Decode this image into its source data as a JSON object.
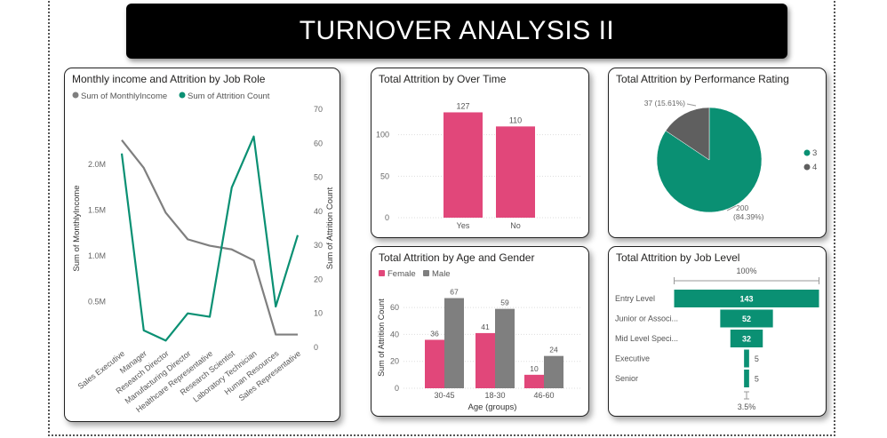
{
  "page": {
    "title": "TURNOVER ANALYSIS II"
  },
  "colors": {
    "teal": "#0a9073",
    "gray": "#7f7f7f",
    "pink": "#e1477a",
    "axis": "#666666",
    "grid": "#dddddd"
  },
  "cards": {
    "job_role": {
      "title": "Monthly income and Attrition by Job Role"
    },
    "overtime": {
      "title": "Total Attrition by Over Time"
    },
    "performance": {
      "title": "Total Attrition by Performance Rating"
    },
    "age_gender": {
      "title": "Total Attrition by Age and Gender"
    },
    "job_level": {
      "title": "Total Attrition by Job Level"
    }
  },
  "chart_data": [
    {
      "id": "job_role",
      "type": "line",
      "title": "Monthly income and Attrition by Job Role",
      "categories": [
        "Sales Executive",
        "Manager",
        "Research Director",
        "Manufacturing Director",
        "Healthcare Representative",
        "Research Scientist",
        "Laboratory Technician",
        "Human Resources",
        "Sales Representative"
      ],
      "series": [
        {
          "name": "Sum of MonthlyIncome",
          "axis": "left",
          "color": "#7f7f7f",
          "values": [
            2263000,
            1960000,
            1470000,
            1180000,
            1110000,
            1070000,
            950000,
            140000,
            140000
          ]
        },
        {
          "name": "Sum of Attrition Count",
          "axis": "right",
          "color": "#0a9073",
          "values": [
            57,
            5,
            2,
            10,
            9,
            47,
            62,
            12,
            33
          ]
        }
      ],
      "ylabel_left": "Sum of MonthlyIncome",
      "ylabel_right": "Sum of Attrition Count",
      "left_ticks": [
        "0.5M",
        "1.0M",
        "1.5M",
        "2.0M"
      ],
      "left_tick_values": [
        500000,
        1000000,
        1500000,
        2000000
      ],
      "ylim_left": [
        0,
        2600000
      ],
      "right_ticks": [
        0,
        10,
        20,
        30,
        40,
        50,
        60,
        70
      ],
      "ylim_right": [
        0,
        70
      ],
      "legend": "top-left"
    },
    {
      "id": "overtime",
      "type": "bar",
      "title": "Total Attrition by Over Time",
      "categories": [
        "Yes",
        "No"
      ],
      "values": [
        127,
        110
      ],
      "color": "#e1477a",
      "y_ticks": [
        0,
        50,
        100
      ],
      "ylim": [
        0,
        135
      ]
    },
    {
      "id": "performance",
      "type": "pie",
      "title": "Total Attrition by Performance Rating",
      "slices": [
        {
          "label": "3",
          "value": 200,
          "pct": "84.39%",
          "data_label": "200 (84.39%)",
          "color": "#0a9073"
        },
        {
          "label": "4",
          "value": 37,
          "pct": "15.61%",
          "data_label": "37 (15.61%)",
          "color": "#5f5f5f"
        }
      ],
      "legend": "right"
    },
    {
      "id": "age_gender",
      "type": "bar",
      "title": "Total Attrition by Age and Gender",
      "categories": [
        "30-45",
        "18-30",
        "46-60"
      ],
      "series": [
        {
          "name": "Female",
          "color": "#e1477a",
          "values": [
            36,
            41,
            10
          ]
        },
        {
          "name": "Male",
          "color": "#7f7f7f",
          "values": [
            67,
            59,
            24
          ]
        }
      ],
      "xlabel": "Age (groups)",
      "ylabel": "Sum of Attrition Count",
      "y_ticks": [
        0,
        20,
        40,
        60
      ],
      "ylim": [
        0,
        70
      ],
      "legend": "top-left"
    },
    {
      "id": "job_level",
      "type": "funnel",
      "title": "Total Attrition by Job Level",
      "categories": [
        "Entry Level",
        "Junior or Associ...",
        "Mid Level Speci...",
        "Executive",
        "Senior"
      ],
      "values": [
        143,
        52,
        32,
        5,
        5
      ],
      "color": "#0a9073",
      "top_label": "100%",
      "bottom_label": "3.5%"
    }
  ]
}
